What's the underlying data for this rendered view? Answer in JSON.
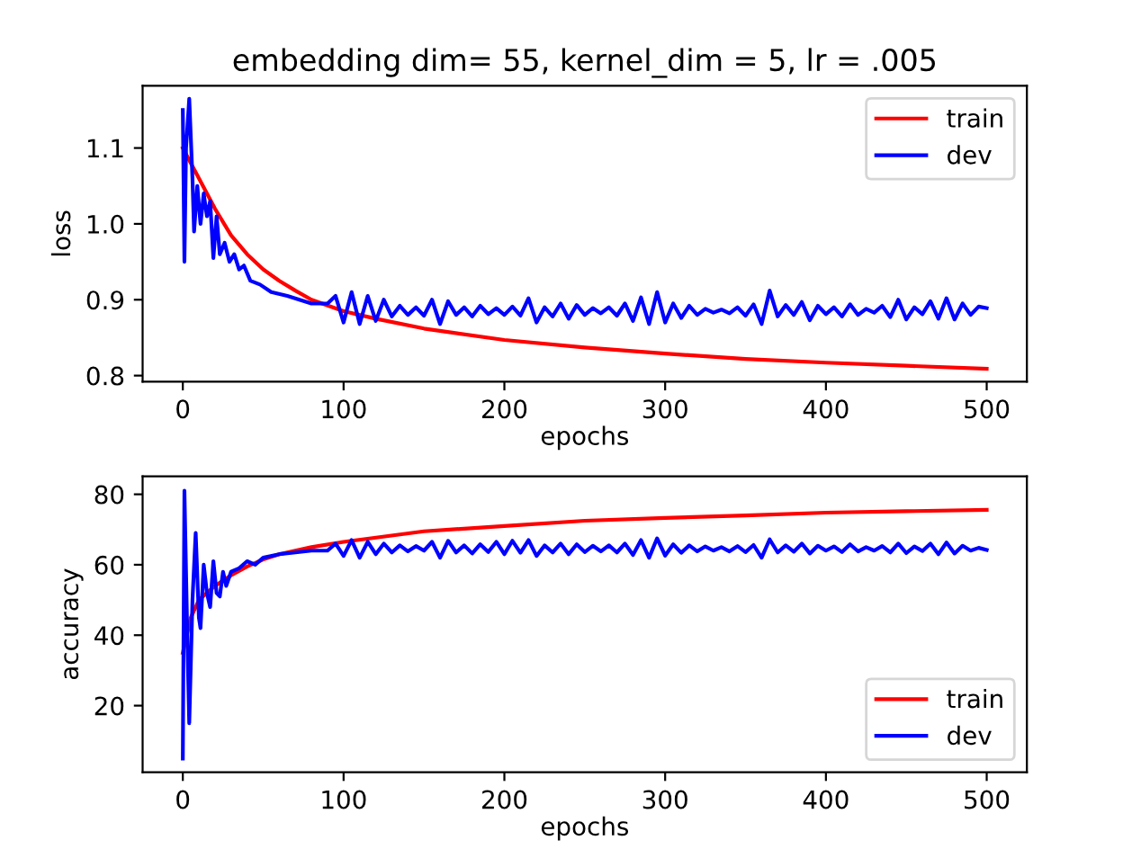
{
  "chart_data": [
    {
      "type": "line",
      "title": "embedding dim= 55, kernel_dim = 5, lr = .005",
      "xlabel": "epochs",
      "ylabel": "loss",
      "xlim": [
        -25,
        525
      ],
      "xticks": [
        0,
        100,
        200,
        300,
        400,
        500
      ],
      "ylim": [
        0.792,
        1.182
      ],
      "yticks": [
        {
          "value": 0.8,
          "label": "0.8"
        },
        {
          "value": 0.9,
          "label": "0.9"
        },
        {
          "value": 1.0,
          "label": "1.0"
        },
        {
          "value": 1.1,
          "label": "1.1"
        }
      ],
      "legend": "top right",
      "grid": false,
      "series": [
        {
          "name": "train",
          "color": "#ff0000",
          "x": [
            0,
            5,
            10,
            20,
            30,
            40,
            50,
            60,
            70,
            80,
            100,
            120,
            150,
            200,
            250,
            300,
            350,
            400,
            450,
            500
          ],
          "values": [
            1.1,
            1.08,
            1.06,
            1.02,
            0.985,
            0.96,
            0.94,
            0.925,
            0.912,
            0.9,
            0.885,
            0.875,
            0.862,
            0.847,
            0.837,
            0.829,
            0.822,
            0.817,
            0.813,
            0.809
          ]
        },
        {
          "name": "dev",
          "color": "#0000ff",
          "x": [
            0,
            1,
            2,
            4,
            6,
            7,
            9,
            11,
            13,
            15,
            17,
            19,
            21,
            23,
            26,
            29,
            32,
            35,
            38,
            42,
            48,
            55,
            65,
            80,
            90,
            95,
            100,
            105,
            110,
            115,
            120,
            125,
            130,
            135,
            140,
            145,
            150,
            155,
            160,
            165,
            170,
            175,
            180,
            185,
            190,
            195,
            200,
            205,
            210,
            215,
            220,
            225,
            230,
            235,
            240,
            245,
            250,
            255,
            260,
            265,
            270,
            275,
            280,
            285,
            290,
            295,
            300,
            305,
            310,
            315,
            320,
            325,
            330,
            335,
            340,
            345,
            350,
            355,
            360,
            365,
            370,
            375,
            380,
            385,
            390,
            395,
            400,
            405,
            410,
            415,
            420,
            425,
            430,
            435,
            440,
            445,
            450,
            455,
            460,
            465,
            470,
            475,
            480,
            485,
            490,
            495,
            500
          ],
          "values": [
            1.15,
            0.95,
            1.1,
            1.165,
            1.06,
            0.99,
            1.05,
            1.0,
            1.04,
            1.01,
            1.03,
            0.955,
            1.01,
            0.96,
            0.975,
            0.95,
            0.96,
            0.94,
            0.945,
            0.925,
            0.92,
            0.91,
            0.905,
            0.895,
            0.895,
            0.905,
            0.87,
            0.91,
            0.868,
            0.905,
            0.872,
            0.9,
            0.878,
            0.892,
            0.88,
            0.89,
            0.879,
            0.9,
            0.868,
            0.898,
            0.88,
            0.89,
            0.878,
            0.892,
            0.881,
            0.889,
            0.88,
            0.891,
            0.879,
            0.902,
            0.87,
            0.89,
            0.878,
            0.895,
            0.875,
            0.893,
            0.88,
            0.889,
            0.882,
            0.89,
            0.879,
            0.895,
            0.872,
            0.903,
            0.868,
            0.91,
            0.87,
            0.895,
            0.876,
            0.892,
            0.88,
            0.888,
            0.883,
            0.887,
            0.882,
            0.89,
            0.879,
            0.894,
            0.868,
            0.912,
            0.878,
            0.893,
            0.88,
            0.897,
            0.873,
            0.892,
            0.881,
            0.89,
            0.878,
            0.894,
            0.88,
            0.888,
            0.883,
            0.892,
            0.877,
            0.9,
            0.874,
            0.89,
            0.881,
            0.898,
            0.875,
            0.902,
            0.874,
            0.895,
            0.88,
            0.891,
            0.889
          ]
        }
      ]
    },
    {
      "type": "line",
      "xlabel": "epochs",
      "ylabel": "accuracy",
      "xlim": [
        -25,
        525
      ],
      "xticks": [
        0,
        100,
        200,
        300,
        400,
        500
      ],
      "ylim": [
        1.1,
        85.1
      ],
      "yticks": [
        20,
        40,
        60,
        80
      ],
      "legend": "bottom right",
      "grid": false,
      "series": [
        {
          "name": "train",
          "color": "#ff0000",
          "x": [
            0,
            5,
            10,
            20,
            30,
            40,
            50,
            60,
            80,
            100,
            150,
            200,
            250,
            300,
            350,
            400,
            450,
            500
          ],
          "values": [
            35,
            45,
            50,
            54,
            57,
            59.5,
            61.5,
            63,
            65,
            66.5,
            69.5,
            71,
            72.5,
            73.3,
            74,
            74.8,
            75.2,
            75.6
          ]
        },
        {
          "name": "dev",
          "color": "#0000ff",
          "x": [
            0,
            1,
            3,
            4,
            6,
            8,
            10,
            11,
            13,
            15,
            17,
            19,
            21,
            23,
            25,
            27,
            30,
            35,
            40,
            45,
            50,
            60,
            70,
            80,
            90,
            95,
            100,
            105,
            110,
            115,
            120,
            125,
            130,
            135,
            140,
            145,
            150,
            155,
            160,
            165,
            170,
            175,
            180,
            185,
            190,
            195,
            200,
            205,
            210,
            215,
            220,
            225,
            230,
            235,
            240,
            245,
            250,
            255,
            260,
            265,
            270,
            275,
            280,
            285,
            290,
            295,
            300,
            305,
            310,
            315,
            320,
            325,
            330,
            335,
            340,
            345,
            350,
            355,
            360,
            365,
            370,
            375,
            380,
            385,
            390,
            395,
            400,
            405,
            410,
            415,
            420,
            425,
            430,
            435,
            440,
            445,
            450,
            455,
            460,
            465,
            470,
            475,
            480,
            485,
            490,
            495,
            500
          ],
          "values": [
            5,
            81,
            35,
            15,
            50,
            69,
            45,
            42,
            60,
            52,
            48,
            61,
            52,
            51,
            58,
            54,
            58,
            59,
            61,
            60,
            62,
            63,
            63.5,
            64,
            64,
            66,
            62.5,
            67,
            62,
            66.5,
            63,
            66,
            63.5,
            65.5,
            63.8,
            65.3,
            64,
            66.5,
            62,
            66.8,
            63.5,
            65.5,
            63.2,
            65.8,
            63.6,
            66.5,
            63,
            66.8,
            63.4,
            67,
            62.5,
            65.5,
            63.5,
            66,
            63,
            65.8,
            63.6,
            65.4,
            63.8,
            65.5,
            63.5,
            66,
            62.8,
            67,
            62,
            67.5,
            62.6,
            65.8,
            63.4,
            65.5,
            63.8,
            65.2,
            64,
            65,
            63.8,
            65.3,
            63.6,
            65.6,
            62,
            67.2,
            63.5,
            65.5,
            63.7,
            66,
            63.2,
            65.4,
            64,
            65.2,
            63.6,
            65.8,
            63.8,
            65,
            64,
            65.3,
            63.5,
            66,
            63.3,
            65.2,
            63.9,
            66,
            63,
            66.3,
            63.2,
            65.4,
            64,
            64.8,
            64.2
          ]
        }
      ]
    }
  ]
}
